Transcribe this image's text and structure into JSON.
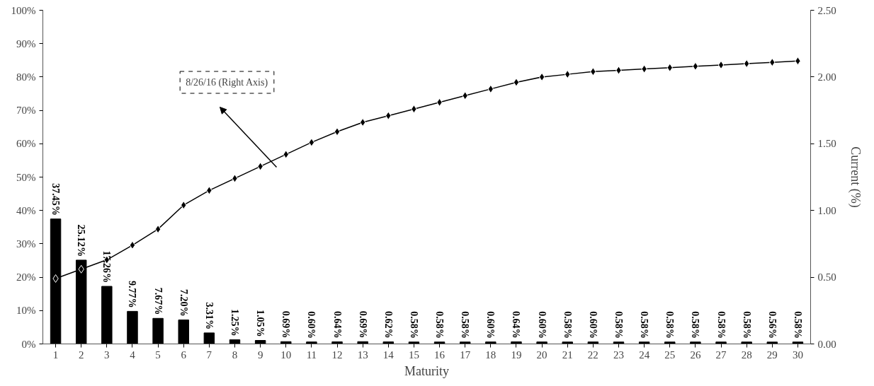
{
  "chart_data": {
    "type": "bar",
    "xlabel": "Maturity",
    "y2label": "Current (%)",
    "x": [
      1,
      2,
      3,
      4,
      5,
      6,
      7,
      8,
      9,
      10,
      11,
      12,
      13,
      14,
      15,
      16,
      17,
      18,
      19,
      20,
      21,
      22,
      23,
      24,
      25,
      26,
      27,
      28,
      29,
      30
    ],
    "xlim": [
      0.5,
      30.5
    ],
    "xticks": [
      1,
      2,
      3,
      4,
      5,
      6,
      7,
      8,
      9,
      10,
      11,
      12,
      13,
      14,
      15,
      16,
      17,
      18,
      19,
      20,
      21,
      22,
      23,
      24,
      25,
      26,
      27,
      28,
      29,
      30
    ],
    "ylim": [
      0,
      100
    ],
    "yticks": [
      {
        "value": 0,
        "label": "0%"
      },
      {
        "value": 10,
        "label": "10%"
      },
      {
        "value": 20,
        "label": "20%"
      },
      {
        "value": 30,
        "label": "30%"
      },
      {
        "value": 40,
        "label": "40%"
      },
      {
        "value": 50,
        "label": "50%"
      },
      {
        "value": 60,
        "label": "60%"
      },
      {
        "value": 70,
        "label": "70%"
      },
      {
        "value": 80,
        "label": "80%"
      },
      {
        "value": 90,
        "label": "90%"
      },
      {
        "value": 100,
        "label": "100%"
      }
    ],
    "y2lim": [
      0,
      2.5
    ],
    "y2ticks": [
      {
        "value": 0,
        "label": "0.00"
      },
      {
        "value": 0.5,
        "label": "0.50"
      },
      {
        "value": 1,
        "label": "1.00"
      },
      {
        "value": 1.5,
        "label": "1.50"
      },
      {
        "value": 2,
        "label": "2.00"
      },
      {
        "value": 2.5,
        "label": "2.50"
      }
    ],
    "grid": false,
    "series": [
      {
        "color": "#000000",
        "values": [
          37.45,
          25.12,
          17.26,
          9.77,
          7.67,
          7.2,
          3.31,
          1.25,
          1.05,
          0.69,
          0.6,
          0.64,
          0.69,
          0.62,
          0.58,
          0.58,
          0.58,
          0.6,
          0.64,
          0.6,
          0.58,
          0.6,
          0.58,
          0.58,
          0.58,
          0.58,
          0.58,
          0.58,
          0.56,
          0.58
        ],
        "value_labels": [
          "37.45%",
          "25.12%",
          "17.26%",
          "9.77%",
          "7.67%",
          "7.20%",
          "3.31%",
          "1.25%",
          "1.05%",
          "0.69%",
          "0.60%",
          "0.64%",
          "0.69%",
          "0.62%",
          "0.58%",
          "0.58%",
          "0.58%",
          "0.60%",
          "0.64%",
          "0.60%",
          "0.58%",
          "0.60%",
          "0.58%",
          "0.58%",
          "0.58%",
          "0.58%",
          "0.58%",
          "0.58%",
          "0.56%",
          "0.58%"
        ]
      },
      {
        "type": "line",
        "axis": "y2",
        "color": "#000000",
        "marker": "diamond",
        "line_style": "solid",
        "values": [
          0.49,
          0.56,
          0.63,
          0.74,
          0.86,
          1.04,
          1.15,
          1.24,
          1.33,
          1.42,
          1.51,
          1.59,
          1.66,
          1.71,
          1.76,
          1.81,
          1.86,
          1.91,
          1.96,
          2.0,
          2.02,
          2.04,
          2.05,
          2.06,
          2.07,
          2.08,
          2.09,
          2.1,
          2.11,
          2.12
        ]
      }
    ],
    "annotations": [
      "8/26/16 (Right Axis)"
    ]
  }
}
